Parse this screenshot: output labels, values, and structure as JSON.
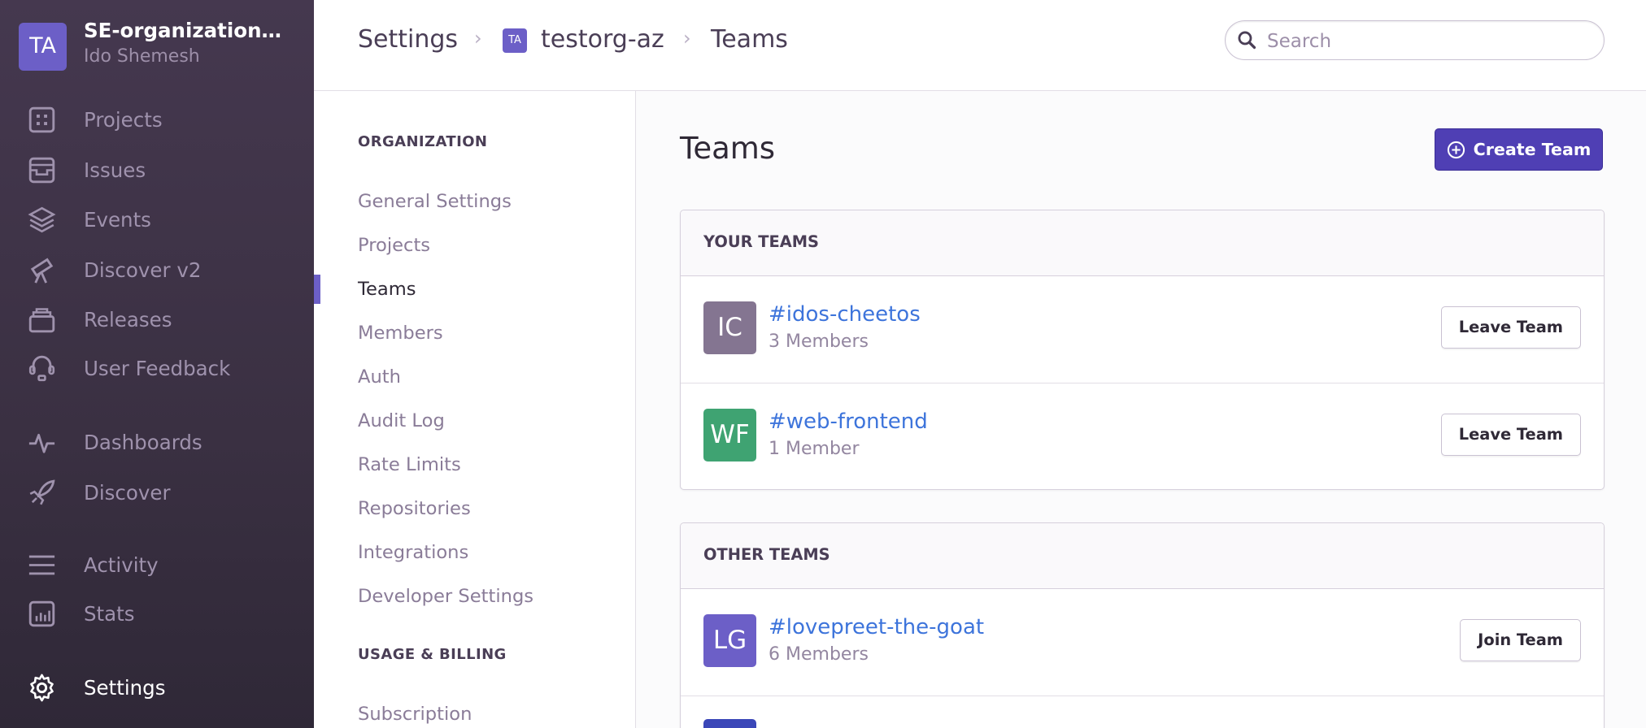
{
  "org": {
    "avatar": "TA",
    "name": "SE-organization…",
    "user": "Ido Shemesh"
  },
  "sidebar": {
    "items": [
      {
        "label": "Projects",
        "icon": "projects-icon"
      },
      {
        "label": "Issues",
        "icon": "issues-icon"
      },
      {
        "label": "Events",
        "icon": "layers-icon"
      },
      {
        "label": "Discover v2",
        "icon": "telescope-icon"
      },
      {
        "label": "Releases",
        "icon": "releases-icon"
      },
      {
        "label": "User Feedback",
        "icon": "headset-icon"
      },
      {
        "label": "Dashboards",
        "icon": "pulse-icon"
      },
      {
        "label": "Discover",
        "icon": "rocket-icon"
      },
      {
        "label": "Activity",
        "icon": "list-icon"
      },
      {
        "label": "Stats",
        "icon": "bar-chart-icon"
      },
      {
        "label": "Settings",
        "icon": "gear-icon",
        "active": true
      }
    ]
  },
  "breadcrumb": {
    "root": "Settings",
    "org_avatar": "TA",
    "org": "testorg-az",
    "page": "Teams"
  },
  "search": {
    "placeholder": "Search",
    "value": ""
  },
  "settings_nav": {
    "organization_heading": "ORGANIZATION",
    "items": [
      "General Settings",
      "Projects",
      "Teams",
      "Members",
      "Auth",
      "Audit Log",
      "Rate Limits",
      "Repositories",
      "Integrations",
      "Developer Settings"
    ],
    "active": "Teams",
    "billing_heading": "USAGE & BILLING",
    "billing_items": [
      "Subscription"
    ]
  },
  "main": {
    "title": "Teams",
    "create_button": "Create Team",
    "your_teams": {
      "heading": "YOUR TEAMS",
      "teams": [
        {
          "avatar": "IC",
          "name": "#idos-cheetos",
          "members": "3 Members",
          "action": "Leave Team",
          "color": "#847591"
        },
        {
          "avatar": "WF",
          "name": "#web-frontend",
          "members": "1 Member",
          "action": "Leave Team",
          "color": "#3fa372"
        }
      ]
    },
    "other_teams": {
      "heading": "OTHER TEAMS",
      "teams": [
        {
          "avatar": "LG",
          "name": "#lovepreet-the-goat",
          "members": "6 Members",
          "action": "Join Team",
          "color": "#6c5fc7"
        }
      ],
      "partial_avatar_color": "#3b47b8"
    }
  },
  "colors": {
    "accent": "#6c5fc7",
    "primary_button": "#4f3fb4",
    "link": "#3d74db"
  }
}
